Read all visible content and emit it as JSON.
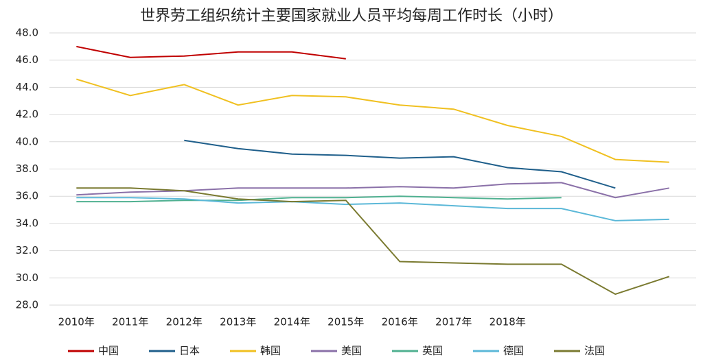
{
  "chart_data": {
    "type": "line",
    "title": "世界劳工组织统计主要国家就业人员平均每周工作时长（小时）",
    "categories": [
      "2010年",
      "2011年",
      "2012年",
      "2013年",
      "2014年",
      "2015年",
      "2016年",
      "2017年",
      "2018年",
      null,
      null,
      null
    ],
    "series": [
      {
        "name": "中国",
        "color": "#c00000",
        "values": [
          47.0,
          46.2,
          46.3,
          46.6,
          46.6,
          46.1,
          null,
          null,
          null,
          null,
          null,
          null
        ]
      },
      {
        "name": "日本",
        "color": "#1f5f8b",
        "values": [
          null,
          null,
          40.1,
          39.5,
          39.1,
          39.0,
          38.8,
          38.9,
          38.1,
          37.8,
          36.6,
          null
        ]
      },
      {
        "name": "韩国",
        "color": "#f0c020",
        "values": [
          44.6,
          43.4,
          44.2,
          42.7,
          43.4,
          43.3,
          42.7,
          42.4,
          41.2,
          40.4,
          38.7,
          38.5
        ]
      },
      {
        "name": "美国",
        "color": "#8a70a8",
        "values": [
          36.1,
          36.3,
          36.4,
          36.6,
          36.6,
          36.6,
          36.7,
          36.6,
          36.9,
          37.0,
          35.9,
          36.6
        ]
      },
      {
        "name": "英国",
        "color": "#4fb090",
        "values": [
          35.6,
          35.6,
          35.7,
          35.7,
          35.9,
          35.9,
          36.0,
          35.9,
          35.8,
          35.9,
          null,
          null
        ]
      },
      {
        "name": "德国",
        "color": "#5bb8d8",
        "values": [
          35.9,
          35.9,
          35.8,
          35.5,
          35.6,
          35.4,
          35.5,
          35.3,
          35.1,
          35.1,
          34.2,
          34.3
        ]
      },
      {
        "name": "法国",
        "color": "#7a7a30",
        "values": [
          36.6,
          36.6,
          36.4,
          35.8,
          35.6,
          35.7,
          31.2,
          31.1,
          31.0,
          31.0,
          28.8,
          30.1
        ]
      }
    ],
    "ylim": [
      28,
      48
    ],
    "yticks": [
      {
        "value": 28,
        "label": "28.0"
      },
      {
        "value": 30,
        "label": "30.0"
      },
      {
        "value": 32,
        "label": "32.0"
      },
      {
        "value": 34,
        "label": "34.0"
      },
      {
        "value": 36,
        "label": "36.0"
      },
      {
        "value": 38,
        "label": "38.0"
      },
      {
        "value": 40,
        "label": "40.0"
      },
      {
        "value": 42,
        "label": "42.0"
      },
      {
        "value": 44,
        "label": "44.0"
      },
      {
        "value": 46,
        "label": "46.0"
      },
      {
        "value": 48,
        "label": "48.0"
      }
    ],
    "grid": true
  }
}
